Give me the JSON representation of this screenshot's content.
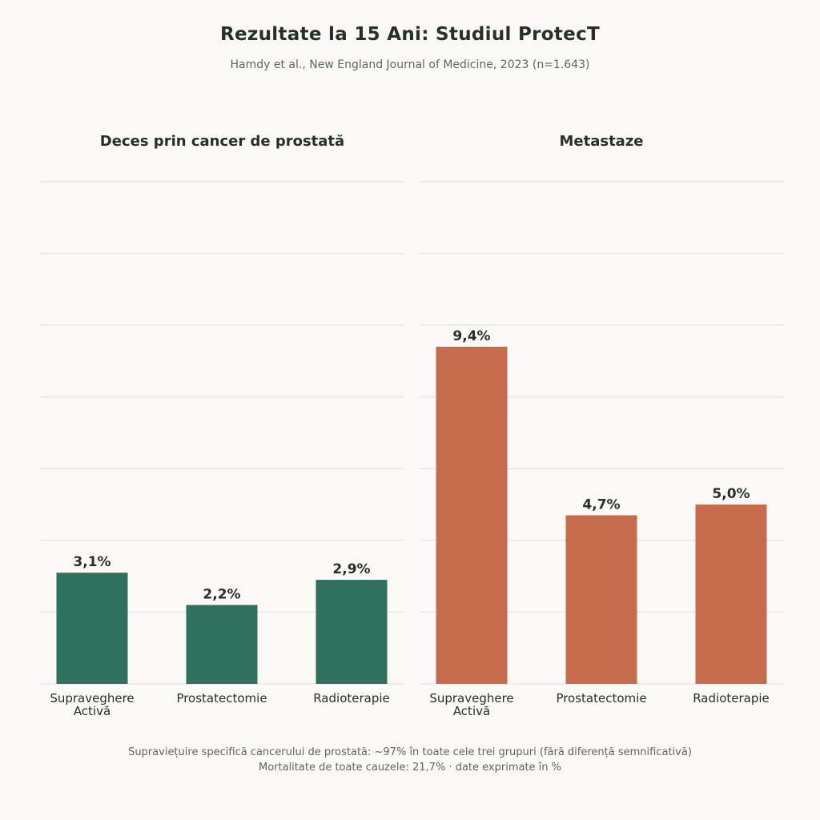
{
  "title": "Rezultate la 15 Ani: Studiul ProtecT",
  "subtitle": "Hamdy et al., New England Journal of Medicine, 2023 (n=1.643)",
  "colors": {
    "panel1": "#2f705f",
    "panel2": "#c66b4b",
    "grid": "#e2e0da",
    "text": "#26302b",
    "muted": "#5f6660"
  },
  "chart_data": [
    {
      "type": "bar",
      "title": "Deces prin cancer de prostată",
      "categories": [
        "Supraveghere\nActivă",
        "Prostatectomie",
        "Radioterapie"
      ],
      "values": [
        3.1,
        2.2,
        2.9
      ],
      "value_labels": [
        "3,1%",
        "2,2%",
        "2,9%"
      ],
      "ylim": [
        0,
        14
      ],
      "grid": true,
      "color": "#2f705f"
    },
    {
      "type": "bar",
      "title": "Metastaze",
      "categories": [
        "Supraveghere\nActivă",
        "Prostatectomie",
        "Radioterapie"
      ],
      "values": [
        9.4,
        4.7,
        5.0
      ],
      "value_labels": [
        "9,4%",
        "4,7%",
        "5,0%"
      ],
      "ylim": [
        0,
        14
      ],
      "grid": true,
      "color": "#c66b4b"
    }
  ],
  "footer": {
    "line1": "Supraviețuire specifică cancerului de prostată: ~97% în toate cele trei grupuri (fără diferență semnificativă)",
    "line2": "Mortalitate de toate cauzele: 21,7%  ·  date exprimate în %"
  }
}
